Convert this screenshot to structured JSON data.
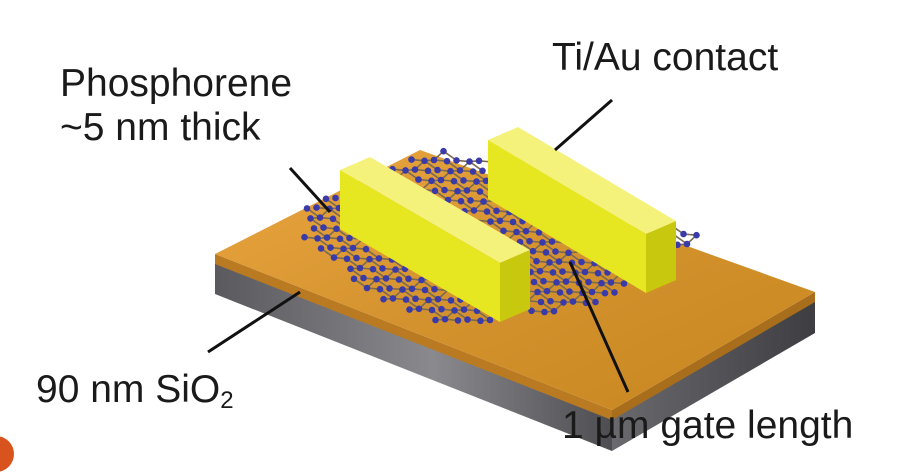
{
  "labels": {
    "phosphorene_line1": "Phosphorene",
    "phosphorene_line2": "~5 nm thick",
    "contact": "Ti/Au contact",
    "oxide_main": "90 nm SiO",
    "oxide_subscript": "2",
    "gate": "1 µm gate length"
  },
  "colors": {
    "oxide_top": "#d4922e",
    "oxide_highlight": "#eaa640",
    "oxide_side": "#a86e1c",
    "silicon_side": "#6f6f72",
    "silicon_dark": "#4b4b4e",
    "contact_top": "#f4f27a",
    "contact_front": "#e6e621",
    "contact_side": "#c8c80e",
    "atom": "#3a3aa8",
    "bond": "#7a6a50",
    "leader_line": "#111111",
    "corner_mark": "#d9531e"
  }
}
